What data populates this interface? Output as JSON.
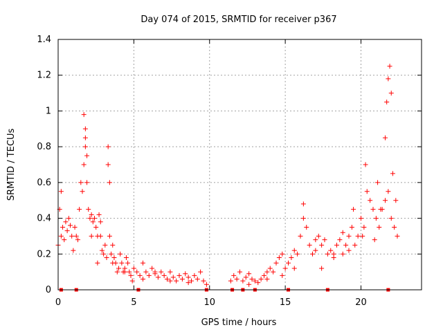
{
  "chart_data": {
    "type": "scatter",
    "title": "Day 074 of 2015, SRMTID for receiver p367",
    "xlabel": "GPS time / hours",
    "ylabel": "SRMTID / TECUs",
    "xlim": [
      0,
      24
    ],
    "ylim": [
      0,
      1.4
    ],
    "xticks": [
      0,
      5,
      10,
      15,
      20
    ],
    "xtick_labels": [
      "0",
      "5",
      "10",
      "15",
      "20"
    ],
    "yticks": [
      0,
      0.2,
      0.4,
      0.6,
      0.8,
      1.0,
      1.2,
      1.4
    ],
    "ytick_labels": [
      "0",
      "0.2",
      "0.4",
      "0.6",
      "0.8",
      "1",
      "1.2",
      "1.4"
    ],
    "grid": true,
    "marker": "+",
    "color": "#ff0000",
    "series": [
      {
        "name": "SRMTID",
        "x": [
          0.0,
          0.1,
          0.2,
          0.3,
          0.4,
          0.5,
          0.6,
          0.7,
          0.8,
          0.9,
          1.0,
          1.1,
          1.2,
          1.3,
          1.4,
          1.5,
          1.6,
          1.7,
          1.8,
          1.9,
          2.0,
          2.1,
          2.2,
          2.3,
          2.4,
          2.5,
          2.6,
          2.7,
          2.8,
          2.9,
          3.0,
          3.1,
          3.2,
          3.3,
          3.4,
          3.5,
          3.6,
          3.7,
          3.8,
          3.9,
          4.0,
          4.1,
          4.2,
          4.3,
          4.4,
          4.5,
          4.6,
          4.7,
          4.8,
          4.9,
          5.0,
          5.2,
          5.4,
          5.6,
          5.8,
          6.0,
          6.2,
          6.4,
          6.6,
          6.8,
          7.0,
          7.2,
          7.4,
          7.6,
          7.8,
          8.0,
          8.2,
          8.4,
          8.6,
          8.8,
          9.0,
          9.2,
          9.4,
          9.6,
          9.8,
          11.4,
          11.6,
          11.8,
          12.0,
          12.2,
          12.4,
          12.6,
          12.8,
          13.0,
          13.2,
          13.4,
          13.6,
          13.8,
          14.0,
          14.2,
          14.4,
          14.6,
          14.8,
          15.0,
          15.2,
          15.4,
          15.6,
          15.8,
          16.0,
          16.2,
          16.4,
          16.6,
          16.8,
          17.0,
          17.2,
          17.4,
          17.6,
          17.8,
          18.0,
          18.2,
          18.4,
          18.6,
          18.8,
          19.0,
          19.2,
          19.4,
          19.6,
          19.8,
          20.0,
          20.2,
          20.4,
          20.6,
          20.8,
          21.0,
          21.2,
          21.4,
          21.6,
          21.8,
          22.0,
          22.2,
          22.4,
          1.7,
          1.8,
          1.9,
          3.3,
          3.4,
          21.9,
          22.0,
          20.3,
          1.8,
          0.2,
          2.6,
          16.2,
          17.4,
          18.8,
          19.5,
          21.1,
          21.6,
          21.7,
          21.8,
          22.1,
          22.3,
          2.2,
          2.8,
          3.6,
          4.4,
          5.6,
          6.4,
          7.4,
          8.6,
          12.6,
          13.8,
          14.8,
          15.6,
          17.0,
          18.2,
          19.2,
          20.1,
          20.9,
          21.3
        ],
        "y": [
          0.25,
          0.45,
          0.3,
          0.35,
          0.28,
          0.38,
          0.33,
          0.4,
          0.36,
          0.3,
          0.22,
          0.35,
          0.3,
          0.28,
          0.45,
          0.6,
          0.55,
          0.7,
          0.85,
          0.6,
          0.45,
          0.4,
          0.42,
          0.38,
          0.4,
          0.35,
          0.3,
          0.42,
          0.3,
          0.22,
          0.2,
          0.25,
          0.18,
          0.7,
          0.3,
          0.2,
          0.25,
          0.18,
          0.15,
          0.1,
          0.12,
          0.2,
          0.15,
          0.1,
          0.12,
          0.18,
          0.15,
          0.1,
          0.08,
          0.05,
          0.12,
          0.1,
          0.08,
          0.15,
          0.1,
          0.08,
          0.12,
          0.1,
          0.07,
          0.1,
          0.08,
          0.06,
          0.1,
          0.07,
          0.05,
          0.08,
          0.06,
          0.09,
          0.07,
          0.05,
          0.08,
          0.06,
          0.1,
          0.05,
          0.03,
          0.05,
          0.08,
          0.06,
          0.1,
          0.05,
          0.07,
          0.09,
          0.06,
          0.05,
          0.04,
          0.06,
          0.08,
          0.1,
          0.12,
          0.1,
          0.15,
          0.18,
          0.2,
          0.12,
          0.15,
          0.18,
          0.22,
          0.2,
          0.3,
          0.4,
          0.35,
          0.25,
          0.2,
          0.22,
          0.3,
          0.25,
          0.28,
          0.2,
          0.22,
          0.18,
          0.25,
          0.28,
          0.2,
          0.25,
          0.3,
          0.35,
          0.25,
          0.3,
          0.4,
          0.35,
          0.55,
          0.5,
          0.45,
          0.4,
          0.35,
          0.45,
          0.5,
          0.55,
          0.4,
          0.35,
          0.3,
          0.98,
          0.8,
          0.75,
          0.8,
          0.6,
          1.25,
          1.1,
          0.7,
          0.9,
          0.55,
          0.15,
          0.48,
          0.12,
          0.32,
          0.45,
          0.6,
          0.85,
          1.05,
          1.18,
          0.65,
          0.5,
          0.3,
          0.38,
          0.15,
          0.1,
          0.06,
          0.09,
          0.05,
          0.04,
          0.03,
          0.06,
          0.08,
          0.12,
          0.28,
          0.2,
          0.22,
          0.3,
          0.28,
          0.45
        ],
        "zero_points_x": [
          0.2,
          1.2,
          5.3,
          9.8,
          11.5,
          12.2,
          13.0,
          15.2,
          17.8,
          21.8
        ]
      }
    ]
  }
}
